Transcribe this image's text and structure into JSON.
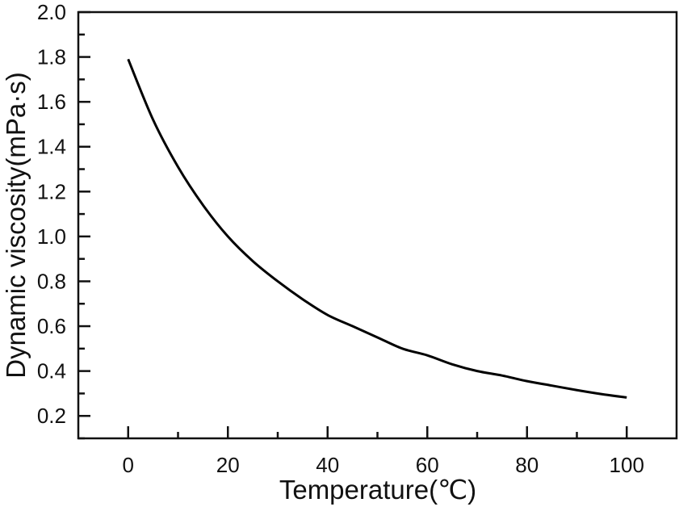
{
  "chart_data": {
    "type": "line",
    "title": "",
    "xlabel": "Temperature(℃)",
    "ylabel": "Dynamic viscosity(mPa·s)",
    "xlim": [
      -10,
      110
    ],
    "ylim": [
      0.1,
      2.0
    ],
    "xticks": [
      0,
      20,
      40,
      60,
      80,
      100
    ],
    "xtick_labels": [
      "0",
      "20",
      "40",
      "60",
      "80",
      "100"
    ],
    "yticks": [
      0.2,
      0.4,
      0.6,
      0.8,
      1.0,
      1.2,
      1.4,
      1.6,
      1.8,
      2.0
    ],
    "ytick_labels": [
      "0.2",
      "0.4",
      "0.6",
      "0.8",
      "1.0",
      "1.2",
      "1.4",
      "1.6",
      "1.8",
      "2.0"
    ],
    "grid": false,
    "series": [
      {
        "name": "Dynamic viscosity",
        "color": "#000000",
        "x": [
          0,
          5,
          10,
          15,
          20,
          25,
          30,
          35,
          40,
          45,
          50,
          55,
          60,
          65,
          70,
          75,
          80,
          85,
          90,
          95,
          100
        ],
        "y": [
          1.79,
          1.52,
          1.31,
          1.14,
          1.0,
          0.89,
          0.8,
          0.72,
          0.65,
          0.6,
          0.55,
          0.5,
          0.47,
          0.43,
          0.4,
          0.38,
          0.355,
          0.335,
          0.315,
          0.297,
          0.282
        ]
      }
    ]
  }
}
